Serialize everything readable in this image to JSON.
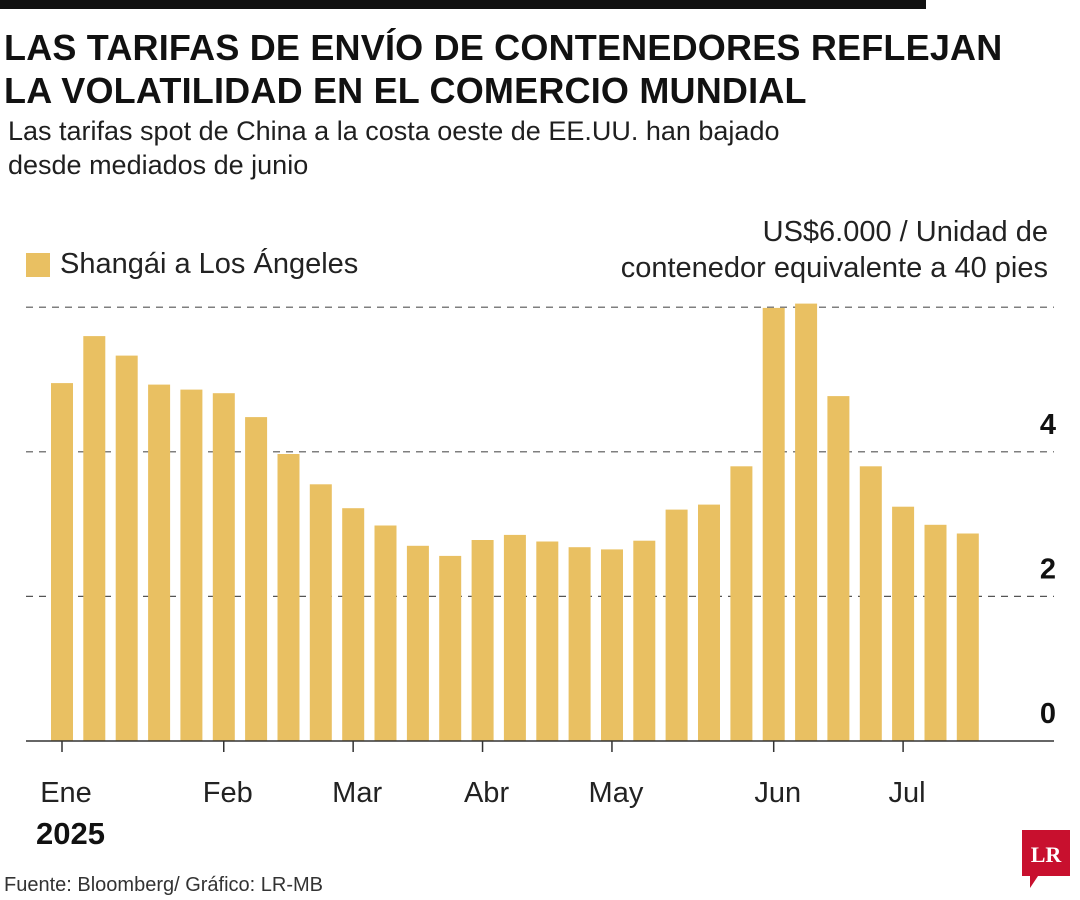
{
  "header": {
    "title_line1": "LAS TARIFAS DE ENVÍO DE CONTENEDORES REFLEJAN",
    "title_line2": "LA VOLATILIDAD EN EL COMERCIO MUNDIAL",
    "subtitle_line1": "Las tarifas spot de China a la costa oeste de EE.UU. han bajado",
    "subtitle_line2": "desde mediados de junio"
  },
  "legend": {
    "label": "Shangái a Los Ángeles"
  },
  "unit": {
    "line1": "US$6.000 / Unidad de",
    "line2": "contenedor equivalente a 40 pies"
  },
  "footer": {
    "year": "2025",
    "source": "Fuente: Bloomberg/ Gráfico: LR-MB",
    "logo_text": "LR"
  },
  "colors": {
    "bar": "#E9C062",
    "logo": "#C8102E",
    "text": "#1a1a1a",
    "grid": "#555555"
  },
  "chart_data": {
    "type": "bar",
    "title": "LAS TARIFAS DE ENVÍO DE CONTENEDORES REFLEJAN LA VOLATILIDAD EN EL COMERCIO MUNDIAL",
    "ylabel": "US$ / Unidad de contenedor equivalente a 40 pies",
    "xlabel": "",
    "ylim": [
      0,
      6
    ],
    "yticks": [
      0,
      2,
      4
    ],
    "ytick_labels": [
      "0",
      "2",
      "4"
    ],
    "top_gridline": 6,
    "month_labels": [
      "Ene",
      "Feb",
      "Mar",
      "Abr",
      "May",
      "Jun",
      "Jul"
    ],
    "month_start_index": [
      0,
      5,
      9,
      13,
      17,
      22,
      26
    ],
    "series": [
      {
        "name": "Shangái a Los Ángeles",
        "values": [
          4.95,
          5.6,
          5.33,
          4.93,
          4.86,
          4.81,
          4.48,
          3.97,
          3.55,
          3.22,
          2.98,
          2.7,
          2.56,
          2.78,
          2.85,
          2.76,
          2.68,
          2.65,
          2.77,
          3.2,
          3.27,
          3.8,
          5.99,
          6.05,
          4.77,
          3.8,
          3.24,
          2.99,
          2.87
        ]
      }
    ]
  }
}
